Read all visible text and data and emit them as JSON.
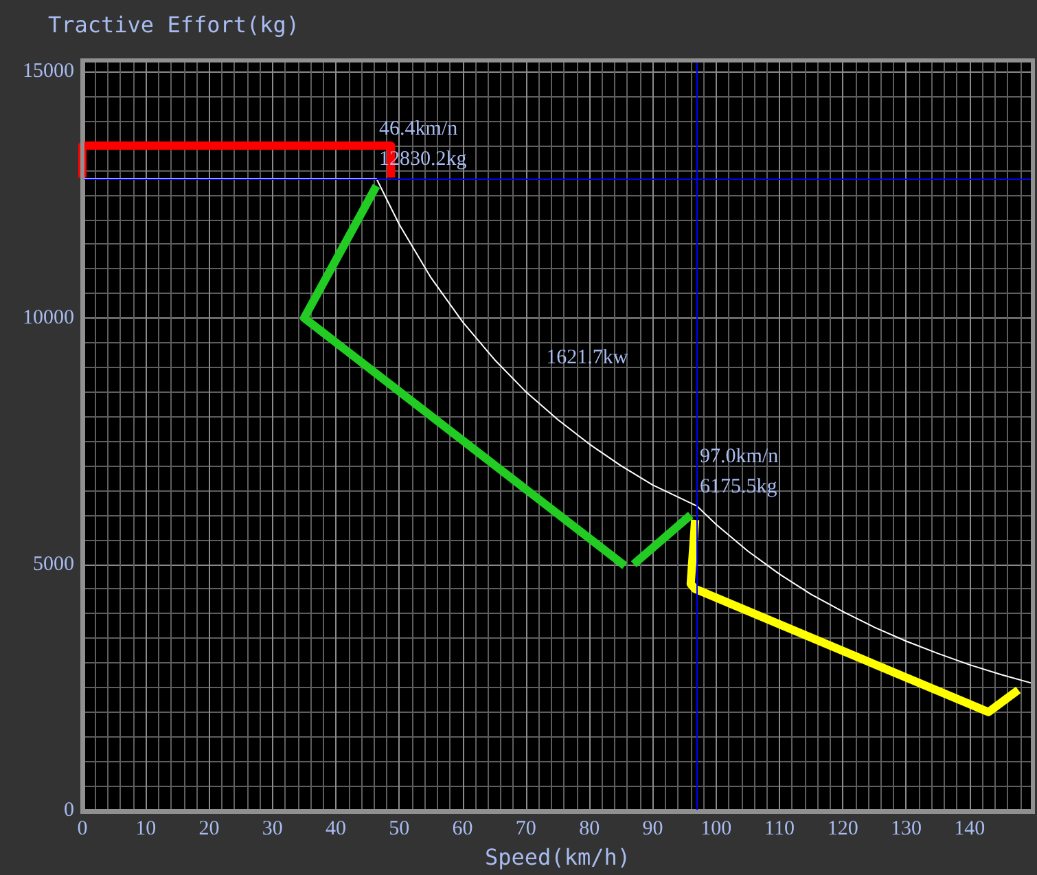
{
  "chart_data": {
    "type": "line",
    "title": "Tractive Effort(kg)",
    "xlabel": "Speed(km/h)",
    "xlim": [
      0,
      150
    ],
    "xticks": [
      0,
      10,
      20,
      30,
      40,
      50,
      60,
      70,
      80,
      90,
      100,
      110,
      120,
      130,
      140
    ],
    "ylim": [
      0,
      15200
    ],
    "yticks": [
      0,
      5000,
      10000,
      15000
    ],
    "grid": true,
    "marker": "none",
    "line_style": "solid",
    "series": [
      {
        "color": "#ffffff",
        "x": [
          0,
          46.4,
          50,
          55,
          60,
          65,
          70,
          75,
          80,
          85,
          90,
          97,
          100,
          105,
          110,
          115,
          120,
          125,
          130,
          135,
          140,
          145,
          150
        ],
        "values": [
          12830,
          12830,
          11900,
          10820,
          9920,
          9160,
          8500,
          7940,
          7440,
          7000,
          6610,
          6180,
          5810,
          5270,
          4800,
          4390,
          4040,
          3720,
          3440,
          3190,
          2960,
          2760,
          2580
        ]
      },
      {
        "color": "#ff0000",
        "x": [
          0,
          0,
          48.7,
          48.7
        ],
        "values": [
          12850,
          13500,
          13500,
          12850
        ]
      },
      {
        "color": "#22cc22",
        "x": [
          46.4,
          35,
          85.6,
          86.5,
          87,
          96
        ],
        "values": [
          12680,
          10000,
          4970,
          null,
          5000,
          6000
        ]
      },
      {
        "color": "#ffff00",
        "x": [
          96.7,
          96,
          96.7,
          143,
          147.7
        ],
        "values": [
          5900,
          4600,
          4500,
          2000,
          2450
        ]
      }
    ],
    "ref_lines": [
      {
        "axis": "y",
        "value": 12830.2,
        "color": "#0000ff"
      },
      {
        "axis": "x",
        "value": 97.0,
        "color": "#0000ff"
      }
    ],
    "annotations": [
      {
        "text": "46.4km/n\n12830.2kg",
        "x": 46.4,
        "y": 12830.2
      },
      "1621.7kw",
      {
        "text": "97.0km/n\n6175.5kg",
        "x": 97.0,
        "y": 6175.5
      }
    ]
  }
}
